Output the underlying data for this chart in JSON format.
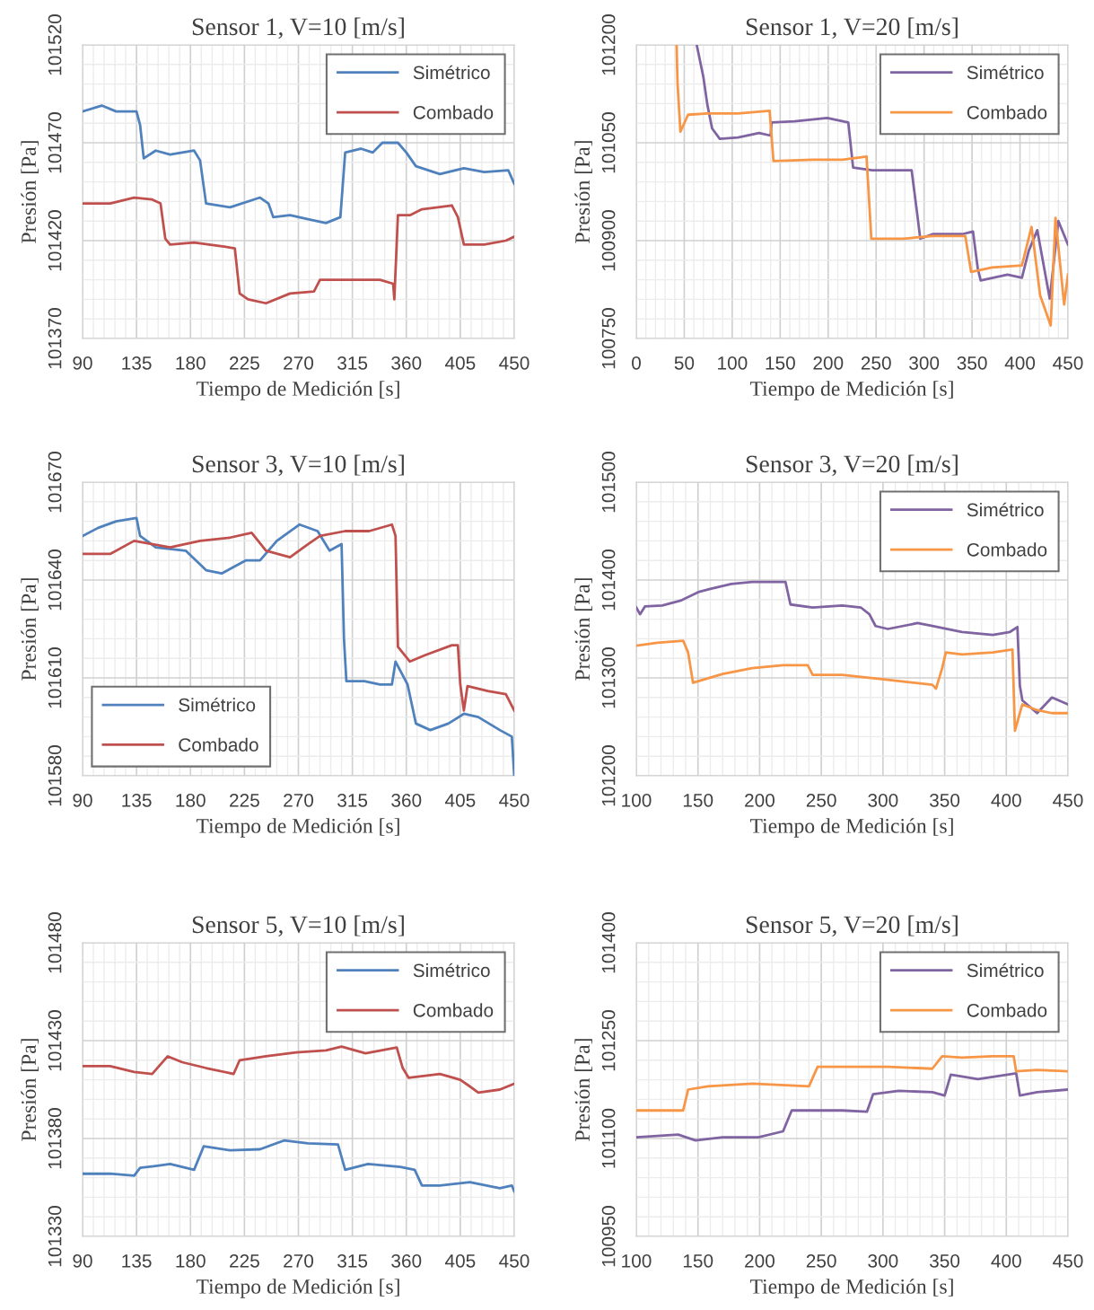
{
  "chart_data": [
    {
      "type": "line",
      "title": "Sensor 1, V=10 [m/s]",
      "xlabel": "Tiempo de Medición [s]",
      "ylabel": "Presión [Pa]",
      "xlim": [
        90,
        450
      ],
      "ylim": [
        101370,
        101520
      ],
      "xticks": [
        90,
        135,
        180,
        225,
        270,
        315,
        360,
        405,
        450
      ],
      "yticks": [
        101370,
        101420,
        101470,
        101520
      ],
      "grid": true,
      "legend": "top right",
      "series": [
        {
          "name": "Simétrico",
          "color": "#4f81bd",
          "x": [
            90,
            106,
            118,
            135,
            138,
            141,
            151,
            163,
            183,
            188,
            193,
            213,
            238,
            245,
            249,
            263,
            278,
            293,
            305,
            309,
            322,
            332,
            340,
            353,
            360,
            368,
            388,
            408,
            425,
            445,
            450
          ],
          "values": [
            101486,
            101489,
            101486,
            101486,
            101479,
            101462,
            101466,
            101464,
            101466,
            101461,
            101439,
            101437,
            101442,
            101439,
            101432,
            101433,
            101431,
            101429,
            101432,
            101465,
            101467,
            101465,
            101470,
            101470,
            101465,
            101458,
            101454,
            101457,
            101455,
            101456,
            101449
          ]
        },
        {
          "name": "Combado",
          "color": "#c0504d",
          "x": [
            90,
            113,
            133,
            148,
            155,
            159,
            163,
            183,
            208,
            217,
            221,
            228,
            243,
            263,
            283,
            288,
            313,
            338,
            349,
            350,
            353,
            363,
            373,
            398,
            403,
            408,
            425,
            443,
            450
          ],
          "values": [
            101439,
            101439,
            101442,
            101441,
            101439,
            101421,
            101418,
            101419,
            101417,
            101416,
            101393,
            101390,
            101388,
            101393,
            101394,
            101400,
            101400,
            101400,
            101398,
            101390,
            101433,
            101433,
            101436,
            101438,
            101432,
            101418,
            101418,
            101420,
            101422
          ]
        }
      ]
    },
    {
      "type": "line",
      "title": "Sensor 1, V=20 [m/s]",
      "xlabel": "Tiempo de Medición [s]",
      "ylabel": "Presión [Pa]",
      "xlim": [
        0,
        450
      ],
      "ylim": [
        100750,
        101200
      ],
      "xticks": [
        0,
        50,
        100,
        150,
        200,
        250,
        300,
        350,
        400,
        450
      ],
      "yticks": [
        100750,
        100900,
        101050,
        101200
      ],
      "grid": true,
      "legend": "top right",
      "series": [
        {
          "name": "Simétrico",
          "color": "#8064a2",
          "x": [
            63,
            70,
            74,
            79,
            87,
            106,
            128,
            140,
            141,
            165,
            199,
            221,
            226,
            246,
            265,
            287,
            293,
            296,
            309,
            340,
            351,
            356,
            359,
            387,
            402,
            409,
            418,
            431,
            440,
            450
          ],
          "values": [
            101200,
            101150,
            101109,
            101072,
            101056,
            101058,
            101065,
            101061,
            101081,
            101083,
            101088,
            101081,
            101012,
            101008,
            101008,
            101008,
            100939,
            100903,
            100910,
            100910,
            100914,
            100857,
            100839,
            100848,
            100843,
            100884,
            100916,
            100811,
            100930,
            100894
          ]
        },
        {
          "name": "Combado",
          "color": "#f79646",
          "x": [
            42,
            43,
            46,
            54,
            74,
            106,
            139,
            143,
            184,
            215,
            240,
            245,
            278,
            309,
            343,
            349,
            371,
            402,
            412,
            421,
            432,
            437,
            446,
            450
          ],
          "values": [
            101200,
            101141,
            101067,
            101093,
            101095,
            101095,
            101099,
            101022,
            101024,
            101024,
            101029,
            100903,
            100903,
            100907,
            100907,
            100852,
            100859,
            100862,
            100921,
            100816,
            100770,
            100935,
            100802,
            100848
          ]
        }
      ]
    },
    {
      "type": "line",
      "title": "Sensor 3, V=10 [m/s]",
      "xlabel": "Tiempo de Medición [s]",
      "ylabel": "Presión [Pa]",
      "xlim": [
        90,
        450
      ],
      "ylim": [
        101580,
        101670
      ],
      "xticks": [
        90,
        135,
        180,
        225,
        270,
        315,
        360,
        405,
        450
      ],
      "yticks": [
        101580,
        101610,
        101640,
        101670
      ],
      "grid": true,
      "legend": "bottom left",
      "series": [
        {
          "name": "Simétrico",
          "color": "#4f81bd",
          "x": [
            90,
            103,
            118,
            135,
            138,
            151,
            176,
            193,
            206,
            226,
            238,
            252,
            271,
            286,
            296,
            306,
            308,
            310,
            325,
            338,
            348,
            351,
            361,
            368,
            380,
            395,
            408,
            420,
            438,
            448,
            450
          ],
          "values": [
            101653.5,
            101656,
            101658,
            101659,
            101653.5,
            101650,
            101649,
            101643,
            101642,
            101646,
            101646,
            101652,
            101657,
            101655,
            101649,
            101651,
            101622,
            101609,
            101609,
            101608,
            101608,
            101615,
            101608,
            101596,
            101594,
            101596,
            101599,
            101598,
            101594,
            101592,
            101580
          ]
        },
        {
          "name": "Combado",
          "color": "#c0504d",
          "x": [
            90,
            113,
            133,
            163,
            188,
            213,
            231,
            243,
            263,
            278,
            288,
            309,
            329,
            348,
            351,
            353,
            363,
            376,
            398,
            403,
            405,
            408,
            411,
            428,
            443,
            450
          ],
          "values": [
            101648,
            101648,
            101652,
            101650,
            101652,
            101653,
            101654.5,
            101649,
            101647,
            101651,
            101653.5,
            101655,
            101655,
            101657,
            101653.5,
            101619.5,
            101615,
            101617,
            101620,
            101620,
            101608,
            101600,
            101607.5,
            101606,
            101605,
            101600
          ]
        }
      ]
    },
    {
      "type": "line",
      "title": "Sensor 3, V=20 [m/s]",
      "xlabel": "Tiempo de Medición [s]",
      "ylabel": "Presión [Pa]",
      "xlim": [
        100,
        450
      ],
      "ylim": [
        101200,
        101500
      ],
      "xticks": [
        100,
        150,
        200,
        250,
        300,
        350,
        400,
        450
      ],
      "yticks": [
        101200,
        101300,
        101400,
        101500
      ],
      "grid": true,
      "legend": "top right",
      "series": [
        {
          "name": "Simétrico",
          "color": "#8064a2",
          "x": [
            100,
            103,
            107,
            121,
            136,
            151,
            160,
            177,
            194,
            206,
            221,
            225,
            243,
            267,
            282,
            289,
            294,
            304,
            328,
            340,
            364,
            389,
            403,
            409,
            411,
            413,
            425,
            437,
            450
          ],
          "values": [
            101372,
            101365,
            101373,
            101374,
            101379,
            101388,
            101391,
            101396,
            101398,
            101398,
            101398,
            101375,
            101372,
            101374,
            101372,
            101365,
            101353,
            101350,
            101356,
            101353,
            101347,
            101344,
            101347,
            101352,
            101292,
            101277,
            101264,
            101280,
            101273
          ]
        },
        {
          "name": "Combado",
          "color": "#f79646",
          "x": [
            100,
            117,
            138,
            142,
            146,
            170,
            194,
            219,
            239,
            243,
            267,
            304,
            340,
            343,
            348,
            351,
            364,
            389,
            405,
            407,
            413,
            425,
            437,
            450
          ],
          "values": [
            101333,
            101336,
            101338,
            101326,
            101295,
            101304,
            101310,
            101313,
            101313,
            101303,
            101303,
            101298,
            101293,
            101289,
            101310,
            101326,
            101324,
            101326,
            101329,
            101246,
            101273,
            101267,
            101264,
            101264
          ]
        }
      ]
    },
    {
      "type": "line",
      "title": "Sensor 5, V=10 [m/s]",
      "xlabel": "Tiempo de Medición [s]",
      "ylabel": "Presión [Pa]",
      "xlim": [
        90,
        450
      ],
      "ylim": [
        101330,
        101480
      ],
      "xticks": [
        90,
        135,
        180,
        225,
        270,
        315,
        360,
        405,
        450
      ],
      "yticks": [
        101330,
        101380,
        101430,
        101480
      ],
      "grid": true,
      "legend": "top right",
      "series": [
        {
          "name": "Simétrico",
          "color": "#4f81bd",
          "x": [
            90,
            113,
            133,
            138,
            151,
            163,
            183,
            191,
            213,
            238,
            258,
            278,
            303,
            309,
            328,
            355,
            367,
            373,
            388,
            413,
            438,
            448,
            450
          ],
          "values": [
            101362,
            101362,
            101361,
            101365,
            101366,
            101367,
            101364,
            101376,
            101374,
            101374.5,
            101379,
            101377.5,
            101377,
            101364,
            101367,
            101365.5,
            101364,
            101356,
            101356,
            101357.7,
            101354.6,
            101356,
            101353
          ]
        },
        {
          "name": "Combado",
          "color": "#c0504d",
          "x": [
            90,
            113,
            133,
            148,
            161,
            173,
            193,
            216,
            221,
            243,
            268,
            293,
            306,
            326,
            352,
            357,
            362,
            388,
            405,
            413,
            420,
            438,
            450
          ],
          "values": [
            101417,
            101417,
            101414,
            101413,
            101422,
            101419,
            101416,
            101413,
            101420,
            101422,
            101424,
            101425,
            101427,
            101423.5,
            101426.5,
            101416,
            101411,
            101413,
            101410,
            101406.6,
            101403.5,
            101405,
            101408
          ]
        }
      ]
    },
    {
      "type": "line",
      "title": "Sensor 5, V=20 [m/s]",
      "xlabel": "Tiempo de Medición [s]",
      "ylabel": "Presión [Pa]",
      "xlim": [
        100,
        450
      ],
      "ylim": [
        100950,
        101400
      ],
      "xticks": [
        100,
        150,
        200,
        250,
        300,
        350,
        400,
        450
      ],
      "yticks": [
        100950,
        101100,
        101250,
        101400
      ],
      "grid": true,
      "legend": "top right",
      "series": [
        {
          "name": "Simétrico",
          "color": "#8064a2",
          "x": [
            100,
            134,
            148,
            170,
            199,
            219,
            226,
            243,
            267,
            287,
            292,
            313,
            340,
            350,
            355,
            377,
            401,
            408,
            411,
            425,
            450
          ],
          "values": [
            101102,
            101106,
            101097,
            101102,
            101102,
            101111,
            101143,
            101143,
            101143,
            101141,
            101168,
            101173,
            101171,
            101166,
            101198,
            101191,
            101198,
            101200,
            101166,
            101171,
            101175
          ]
        },
        {
          "name": "Combado",
          "color": "#f79646",
          "x": [
            100,
            121,
            138,
            142,
            158,
            194,
            240,
            247,
            267,
            304,
            340,
            348,
            364,
            389,
            406,
            408,
            425,
            450
          ],
          "values": [
            101143,
            101143,
            101143,
            101175,
            101180,
            101184,
            101180,
            101210,
            101210,
            101210,
            101207,
            101226,
            101224,
            101226,
            101226,
            101203,
            101205,
            101203
          ]
        }
      ]
    }
  ]
}
